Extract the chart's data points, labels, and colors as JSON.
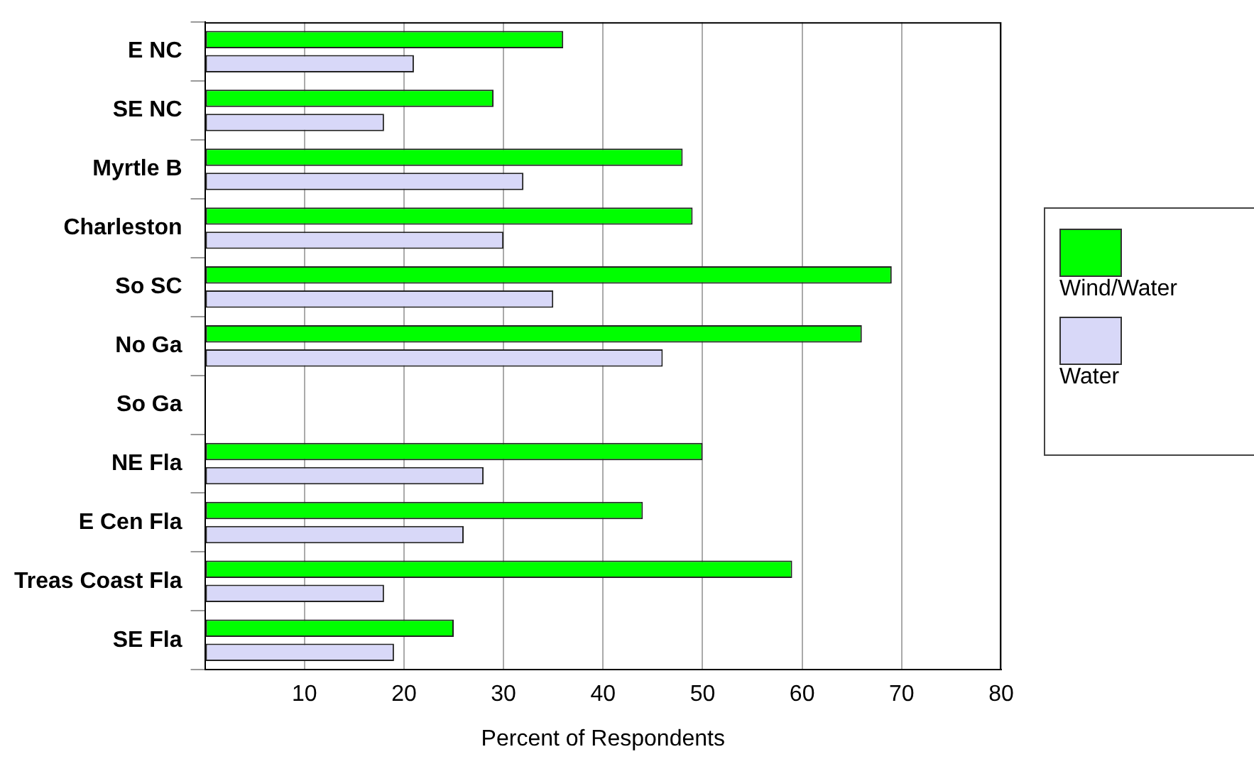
{
  "chart_data": {
    "type": "bar",
    "orientation": "horizontal",
    "xlabel": "Percent of Respondents",
    "categories": [
      "E NC",
      "SE NC",
      "Myrtle B",
      "Charleston",
      "So SC",
      "No Ga",
      "So Ga",
      "NE Fla",
      "E Cen Fla",
      "Treas Coast Fla",
      "SE Fla"
    ],
    "series": [
      {
        "name": "Wind/Water",
        "color": "#00ff00",
        "values": [
          36,
          29,
          48,
          49,
          69,
          66,
          null,
          50,
          44,
          59,
          25
        ]
      },
      {
        "name": "Water",
        "color": "#d8d8f8",
        "values": [
          21,
          18,
          32,
          30,
          35,
          46,
          null,
          28,
          26,
          18,
          19
        ]
      }
    ],
    "xlim": [
      0,
      80
    ],
    "xticks": [
      {
        "value": 0,
        "label": null
      },
      10,
      20,
      30,
      40,
      50,
      60,
      70,
      80
    ],
    "grid": "x",
    "legend": "right"
  }
}
